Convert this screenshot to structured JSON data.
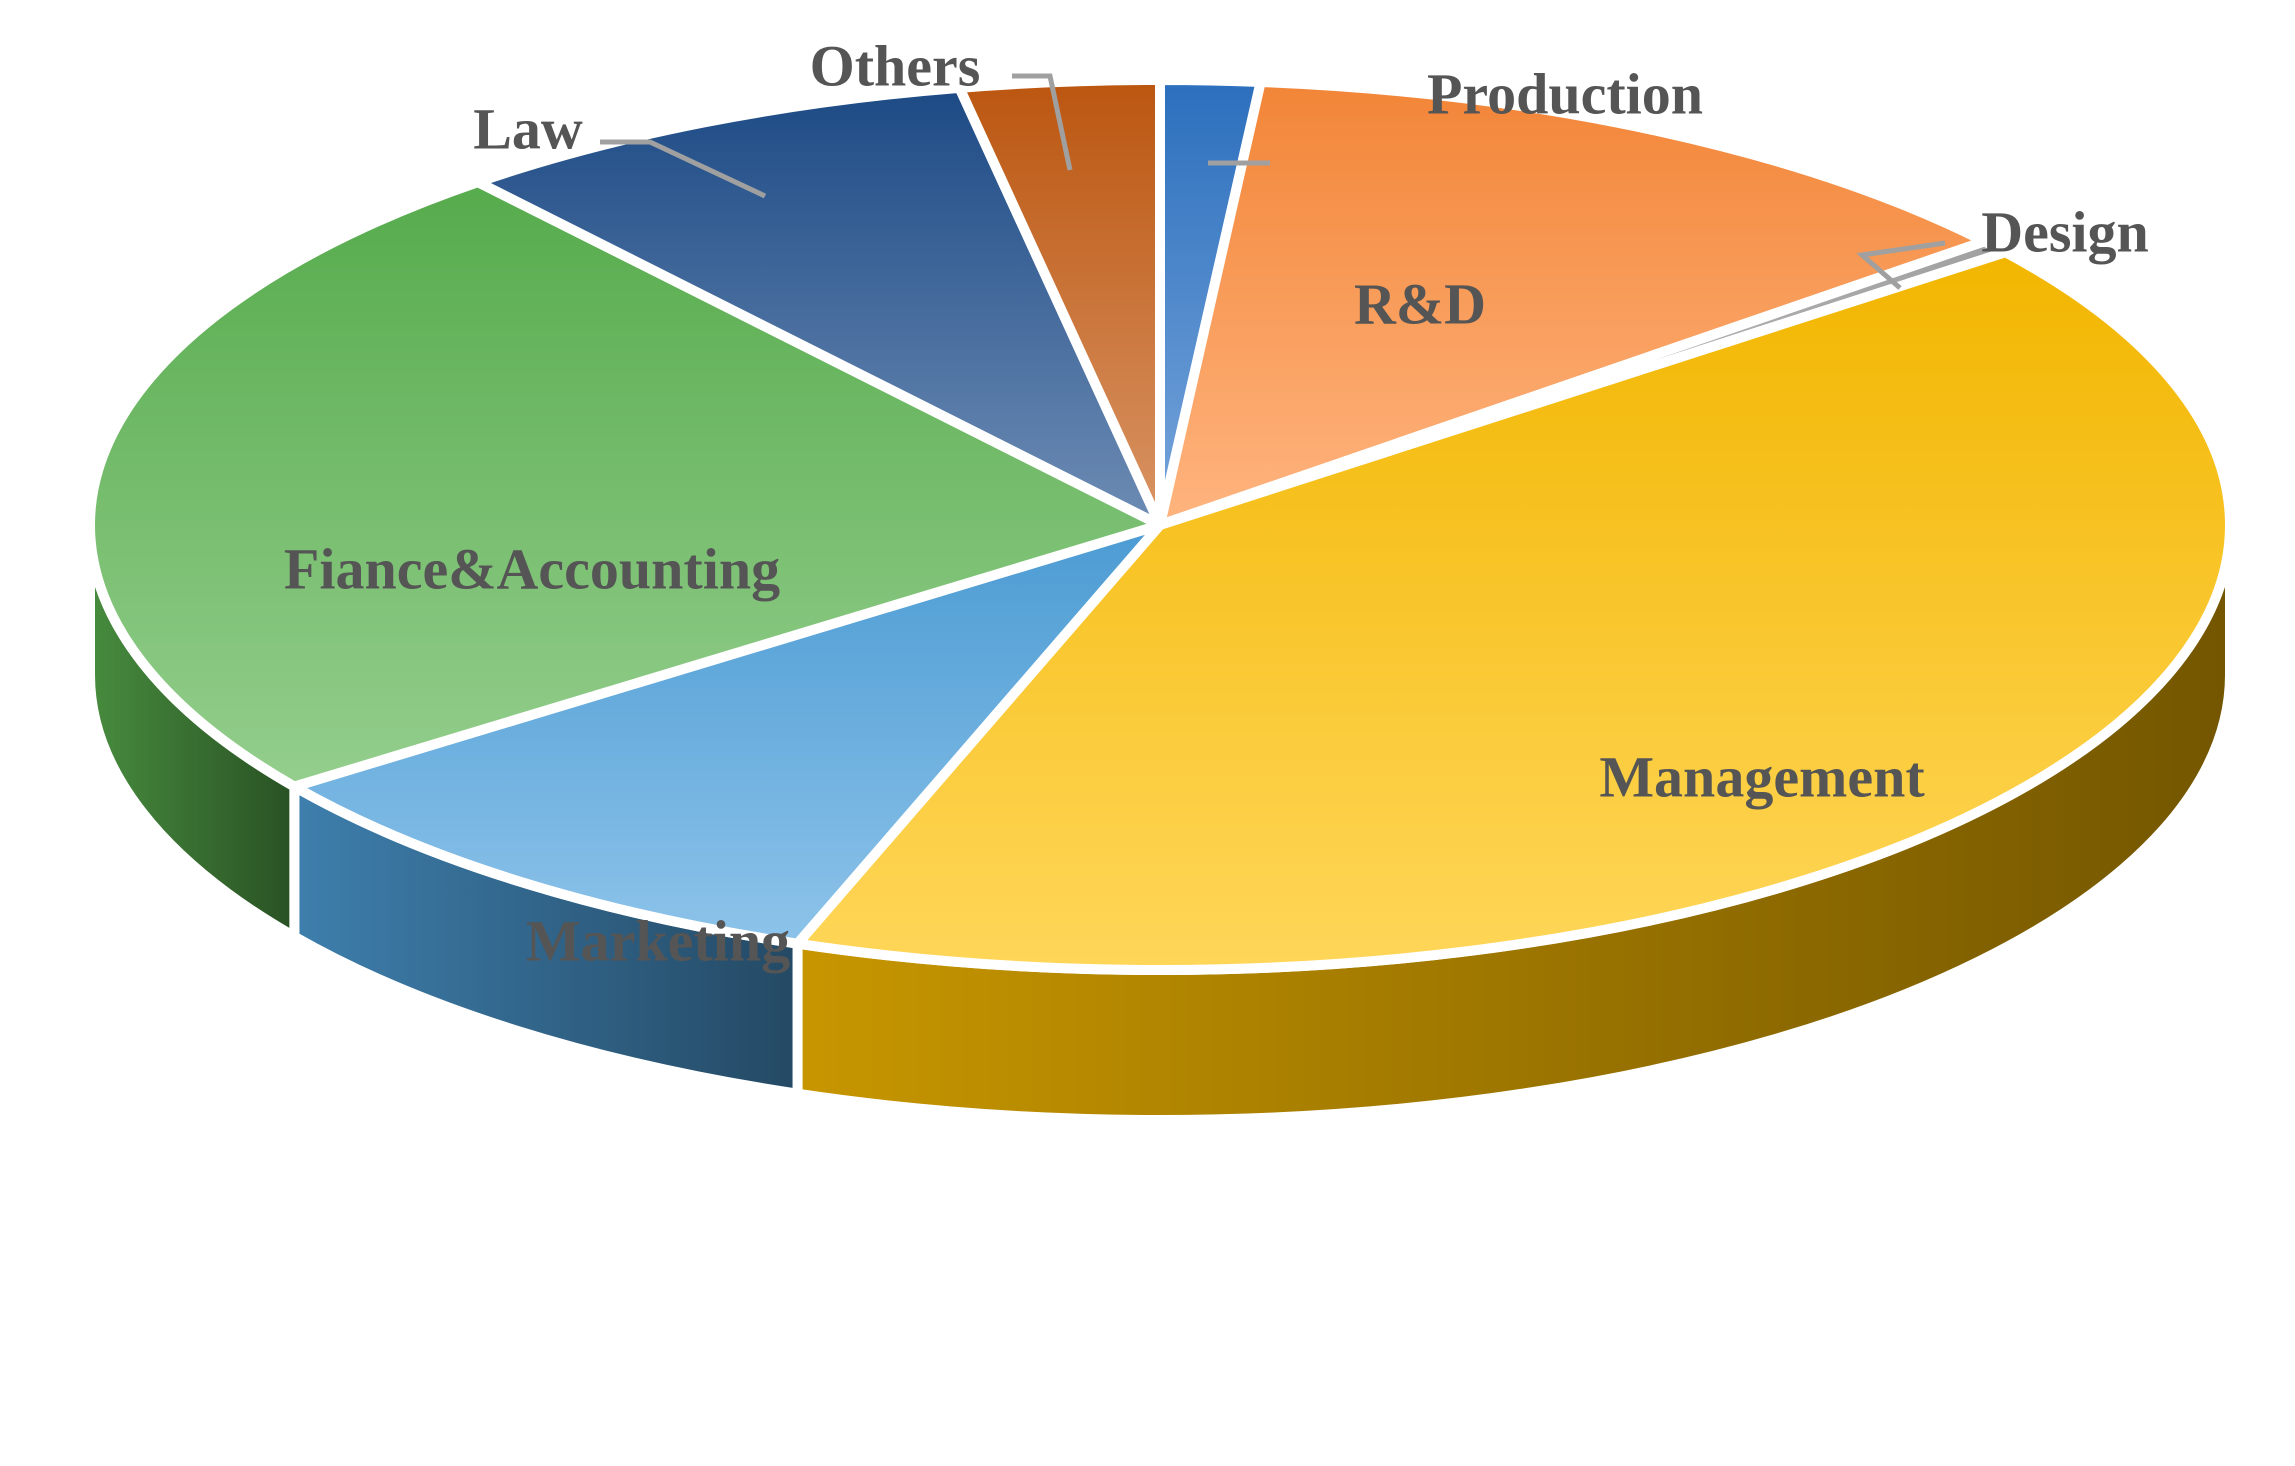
{
  "chart_data": {
    "type": "pie",
    "title": "",
    "style": "3d",
    "legend": "none",
    "slices": [
      {
        "label": "Production",
        "value": 1.5,
        "color": "#2E75C7"
      },
      {
        "label": "R&D",
        "value": 12.5,
        "color": "#FF8C3A"
      },
      {
        "label": "Design",
        "value": 0.5,
        "color": "#A8A8A8"
      },
      {
        "label": "Management",
        "value": 41.0,
        "color": "#FFC000"
      },
      {
        "label": "Marketing",
        "value": 9.5,
        "color": "#4FA3DE"
      },
      {
        "label": "Fiance&Accounting",
        "value": 24.0,
        "color": "#5BB450"
      },
      {
        "label": "Law",
        "value": 8.0,
        "color": "#1F4E8C"
      },
      {
        "label": "Others",
        "value": 3.0,
        "color": "#C55A11"
      }
    ]
  }
}
